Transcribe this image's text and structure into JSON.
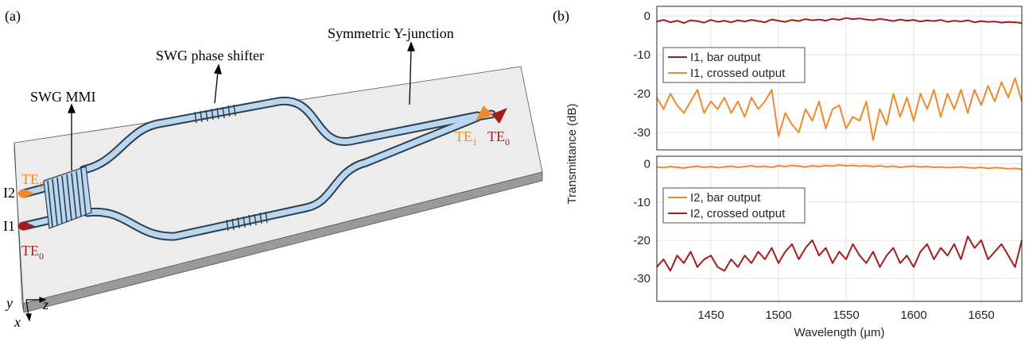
{
  "panel_labels": [
    "(a)",
    "(b)"
  ],
  "diagram": {
    "annotations": [
      "Symmetric Y-junction",
      "SWG phase shifter",
      "SWG MMI"
    ],
    "ports": [
      {
        "text": "TE",
        "sub": "0"
      },
      {
        "text": "TE",
        "sub": "0"
      },
      {
        "text": "TE",
        "sub": "1"
      },
      {
        "text": "TE",
        "sub": "0"
      }
    ],
    "inputs": [
      "I2",
      "I1"
    ],
    "axes": [
      "y",
      "z",
      "x"
    ]
  },
  "chart_data": [
    {
      "type": "line",
      "ylabel": "Transmittance (dB)",
      "show_xtick_labels": false,
      "x": [
        1410,
        1415,
        1420,
        1425,
        1430,
        1435,
        1440,
        1445,
        1450,
        1455,
        1460,
        1465,
        1470,
        1475,
        1480,
        1485,
        1490,
        1495,
        1500,
        1505,
        1510,
        1515,
        1520,
        1525,
        1530,
        1535,
        1540,
        1545,
        1550,
        1555,
        1560,
        1565,
        1570,
        1575,
        1580,
        1585,
        1590,
        1595,
        1600,
        1605,
        1610,
        1615,
        1620,
        1625,
        1630,
        1635,
        1640,
        1645,
        1650,
        1655,
        1660,
        1665,
        1670,
        1675,
        1680
      ],
      "series": [
        {
          "name": "I1, bar output",
          "color": "#a51c1c",
          "values": [
            -1.4,
            -1.0,
            -1.6,
            -1.2,
            -1.8,
            -1.1,
            -1.3,
            -1.7,
            -1.0,
            -1.5,
            -1.2,
            -1.6,
            -1.1,
            -1.4,
            -1.0,
            -1.3,
            -1.6,
            -0.9,
            -1.2,
            -1.5,
            -1.0,
            -1.3,
            -0.8,
            -1.1,
            -0.9,
            -1.2,
            -0.7,
            -1.0,
            -0.5,
            -0.8,
            -0.6,
            -0.9,
            -1.1,
            -0.7,
            -1.0,
            -1.3,
            -0.9,
            -1.2,
            -1.0,
            -1.4,
            -1.1,
            -1.3,
            -1.0,
            -1.5,
            -1.2,
            -1.4,
            -1.1,
            -1.6,
            -1.3,
            -1.5,
            -1.4,
            -1.7,
            -1.5,
            -1.6,
            -1.8
          ]
        },
        {
          "name": "I1, crossed output",
          "color": "#f0892d",
          "values": [
            -21,
            -24,
            -20,
            -23,
            -25,
            -22,
            -19,
            -25,
            -22,
            -24,
            -21,
            -25,
            -22,
            -26,
            -21,
            -24,
            -22,
            -19,
            -31,
            -25,
            -28,
            -30,
            -24,
            -27,
            -22,
            -29,
            -24,
            -23,
            -29,
            -26,
            -27,
            -22,
            -32,
            -24,
            -28,
            -20,
            -26,
            -21,
            -27,
            -20,
            -24,
            -19,
            -26,
            -20,
            -24,
            -19,
            -25,
            -19,
            -23,
            -18,
            -22,
            -17,
            -21,
            -16,
            -22
          ]
        }
      ],
      "xlim": [
        1410,
        1680
      ],
      "ylim": [
        -34.5,
        2.5
      ],
      "xticks": [
        1450,
        1500,
        1550,
        1600,
        1650
      ],
      "yticks": [
        -30,
        -20,
        -10,
        0
      ],
      "grid": true,
      "legend": "upper left"
    },
    {
      "type": "line",
      "xlabel": "Wavelength (µm)",
      "show_xtick_labels": true,
      "x": [
        1410,
        1415,
        1420,
        1425,
        1430,
        1435,
        1440,
        1445,
        1450,
        1455,
        1460,
        1465,
        1470,
        1475,
        1480,
        1485,
        1490,
        1495,
        1500,
        1505,
        1510,
        1515,
        1520,
        1525,
        1530,
        1535,
        1540,
        1545,
        1550,
        1555,
        1560,
        1565,
        1570,
        1575,
        1580,
        1585,
        1590,
        1595,
        1600,
        1605,
        1610,
        1615,
        1620,
        1625,
        1630,
        1635,
        1640,
        1645,
        1650,
        1655,
        1660,
        1665,
        1670,
        1675,
        1680
      ],
      "series": [
        {
          "name": "I2, bar output",
          "color": "#f0892d",
          "values": [
            -0.8,
            -1.0,
            -0.7,
            -0.9,
            -1.1,
            -0.8,
            -0.6,
            -0.9,
            -0.7,
            -1.0,
            -0.8,
            -0.6,
            -0.9,
            -0.7,
            -0.5,
            -0.8,
            -0.6,
            -0.9,
            -0.5,
            -0.7,
            -0.4,
            -0.6,
            -0.8,
            -0.5,
            -0.7,
            -0.4,
            -0.6,
            -0.3,
            -0.5,
            -0.4,
            -0.6,
            -0.5,
            -0.7,
            -0.5,
            -0.8,
            -0.6,
            -0.9,
            -0.7,
            -0.6,
            -0.8,
            -0.7,
            -0.9,
            -0.8,
            -1.0,
            -0.9,
            -0.8,
            -1.0,
            -1.1,
            -0.9,
            -1.2,
            -1.0,
            -1.1,
            -1.3,
            -1.2,
            -1.4
          ]
        },
        {
          "name": "I2, crossed output",
          "color": "#a51c1c",
          "values": [
            -27,
            -25,
            -28,
            -24,
            -26,
            -23,
            -27,
            -25,
            -24,
            -27,
            -28,
            -25,
            -27,
            -24,
            -26,
            -23,
            -25,
            -22,
            -26,
            -23,
            -21,
            -25,
            -22,
            -20,
            -24,
            -22,
            -26,
            -23,
            -25,
            -21,
            -24,
            -26,
            -23,
            -27,
            -24,
            -22,
            -26,
            -24,
            -27,
            -23,
            -21,
            -25,
            -22,
            -24,
            -21,
            -25,
            -19,
            -22,
            -20,
            -25,
            -23,
            -21,
            -24,
            -27,
            -20
          ]
        }
      ],
      "xlim": [
        1410,
        1680
      ],
      "ylim": [
        -36,
        2
      ],
      "xticks": [
        1450,
        1500,
        1550,
        1600,
        1650
      ],
      "yticks": [
        -30,
        -20,
        -10,
        0
      ],
      "grid": true,
      "legend": "upper left"
    }
  ]
}
